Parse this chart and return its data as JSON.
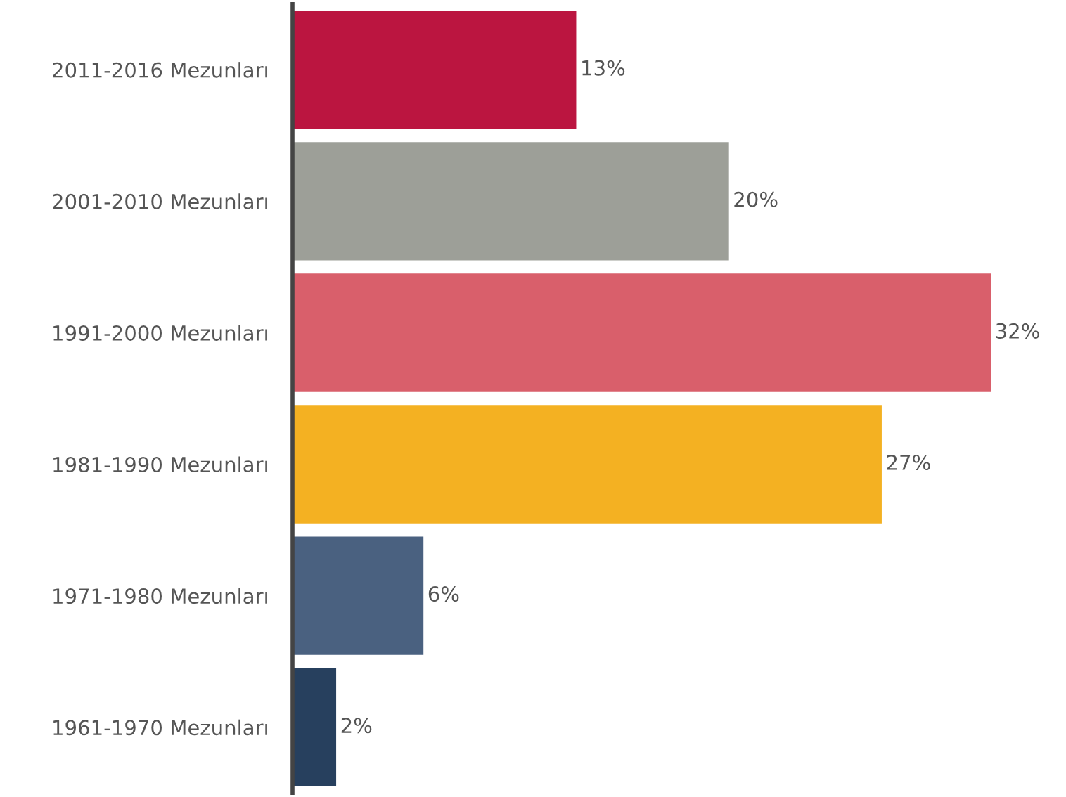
{
  "chart_data": {
    "type": "bar",
    "orientation": "horizontal",
    "categories": [
      "2011-2016 Mezunları",
      "2001-2010 Mezunları",
      "1991-2000 Mezunları",
      "1981-1990 Mezunları",
      "1971-1980 Mezunları",
      "1961-1970 Mezunları"
    ],
    "values": [
      13,
      20,
      32,
      27,
      6,
      2
    ],
    "colors": [
      "#bb1540",
      "#9d9f98",
      "#d95f6b",
      "#f4b122",
      "#4a6180",
      "#27405e"
    ],
    "value_labels": [
      "13%",
      "20%",
      "32%",
      "27%",
      "6%",
      "2%"
    ],
    "tick_labels": "y",
    "grid": false,
    "legend": false
  }
}
